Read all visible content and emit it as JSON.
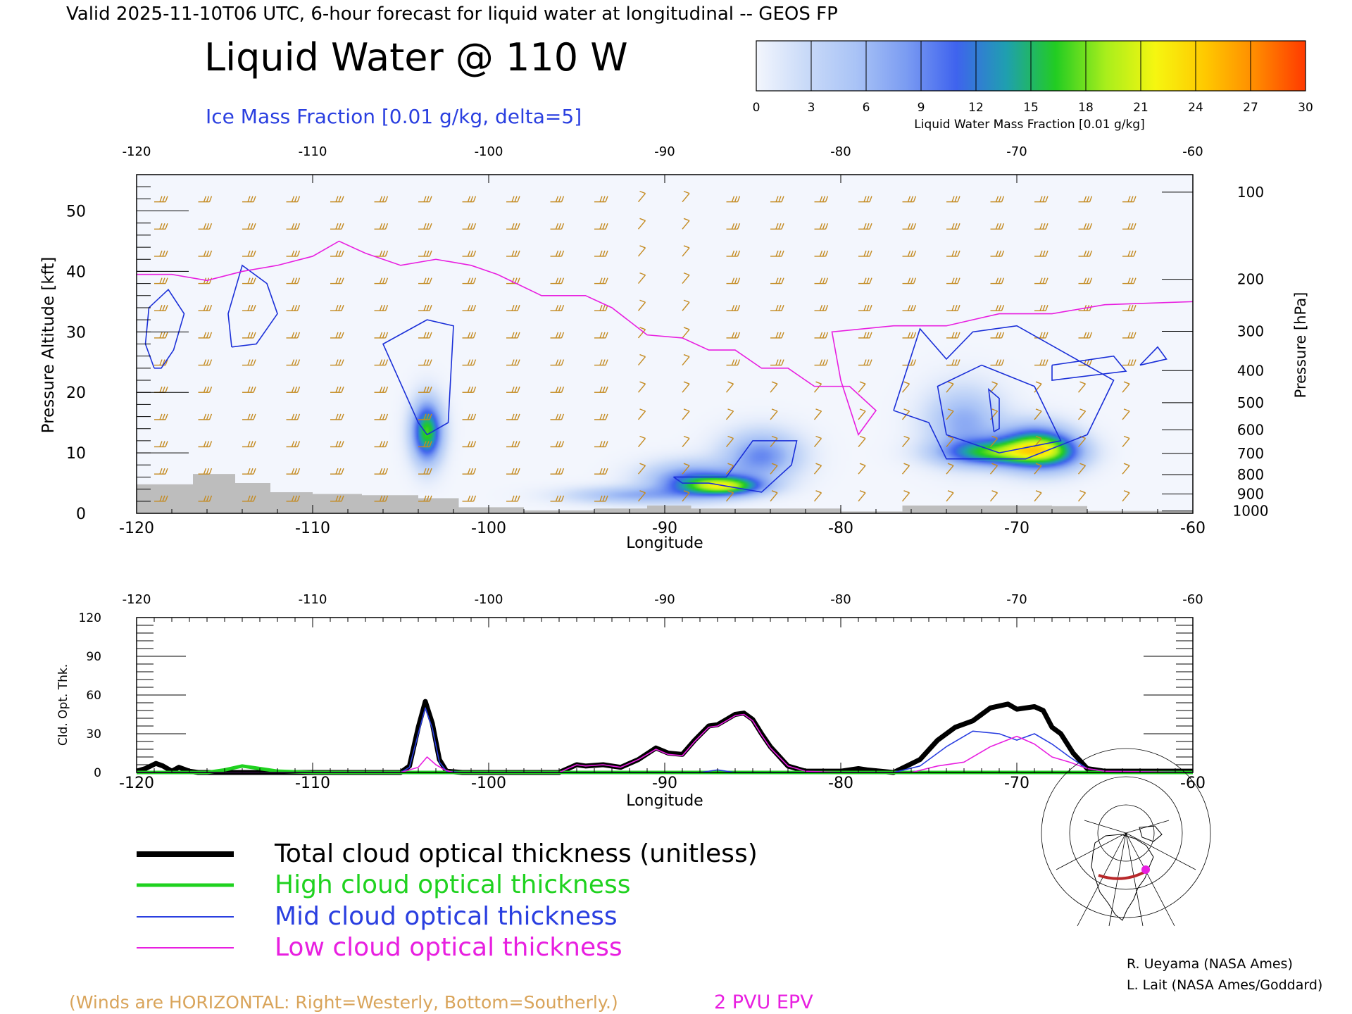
{
  "header": {
    "valid_line": "Valid 2025-11-10T06 UTC, 6-hour forecast for liquid water at longitudinal -- GEOS FP",
    "main_title": "Liquid Water @ 110 W",
    "subtitle": "Ice Mass Fraction [0.01 g/kg, delta=5]"
  },
  "colorbar": {
    "ticks": [
      "0",
      "3",
      "6",
      "9",
      "12",
      "15",
      "18",
      "21",
      "24",
      "27",
      "30"
    ],
    "colors": [
      "#f3f6fd",
      "#c9daf8",
      "#a9c3f6",
      "#7b9cf2",
      "#3f63ee",
      "#1f9fb0",
      "#22cc22",
      "#a8ee1c",
      "#f6f610",
      "#ffc800",
      "#ff8a00",
      "#ff3a00"
    ],
    "label": "Liquid Water Mass Fraction [0.01 g/kg]"
  },
  "colors": {
    "axis": "#000000",
    "contour": "#1a2fd8",
    "epv": "#e81fe0",
    "wind": "#c48b22",
    "terrain": "#bdbdbd",
    "total": "#000000",
    "high": "#1fd21f",
    "mid": "#2a3fe0",
    "low": "#e81fe0"
  },
  "chart_data": [
    {
      "type": "heatmap",
      "title": "Liquid Water @ 110 W",
      "xlabel": "Longitude",
      "ylabel": "Pressure Altitude [kft]",
      "y2label": "Pressure [hPa]",
      "xlim": [
        -120,
        -60
      ],
      "ylim": [
        0,
        56
      ],
      "x_ticks": [
        "-120",
        "-110",
        "-100",
        "-90",
        "-80",
        "-70",
        "-60"
      ],
      "x_tick_values": [
        -120,
        -110,
        -100,
        -90,
        -80,
        -70,
        -60
      ],
      "y_ticks": [
        "0",
        "10",
        "20",
        "30",
        "40",
        "50"
      ],
      "y_tick_values": [
        0,
        10,
        20,
        30,
        40,
        50
      ],
      "pressure_ticks": [
        "100",
        "200",
        "300",
        "400",
        "500",
        "600",
        "700",
        "800",
        "900",
        "1000"
      ],
      "pressure_tick_kft": [
        53.1,
        38.7,
        30.1,
        23.6,
        18.3,
        13.8,
        9.9,
        6.4,
        3.2,
        0.4
      ],
      "liquid_water_blobs": [
        {
          "lon": -103.5,
          "kft": 13.5,
          "peak": 17,
          "sx": 0.6,
          "sy": 3.5
        },
        {
          "lon": -86.5,
          "kft": 4.5,
          "peak": 16,
          "sx": 1.5,
          "sy": 1.1
        },
        {
          "lon": -88.5,
          "kft": 5.5,
          "peak": 10,
          "sx": 1.8,
          "sy": 2.0
        },
        {
          "lon": -84.5,
          "kft": 9.5,
          "peak": 9,
          "sx": 1.5,
          "sy": 2.8
        },
        {
          "lon": -92.0,
          "kft": 3.0,
          "peak": 6,
          "sx": 2.5,
          "sy": 1.0
        },
        {
          "lon": -69.0,
          "kft": 11.0,
          "peak": 16,
          "sx": 1.4,
          "sy": 2.5
        },
        {
          "lon": -71.5,
          "kft": 10.0,
          "peak": 13,
          "sx": 2.0,
          "sy": 1.5
        },
        {
          "lon": -73.0,
          "kft": 15.0,
          "peak": 7,
          "sx": 1.5,
          "sy": 4.0
        },
        {
          "lon": -67.5,
          "kft": 10.0,
          "peak": 7,
          "sx": 1.2,
          "sy": 2.0
        }
      ],
      "ice_contours": [
        [
          [
            -119.0,
            24
          ],
          [
            -119.5,
            28
          ],
          [
            -119.3,
            34
          ],
          [
            -118.2,
            37
          ],
          [
            -117.3,
            33
          ],
          [
            -117.9,
            27
          ],
          [
            -118.6,
            24
          ],
          [
            -119.0,
            24
          ]
        ],
        [
          [
            -114.6,
            27.5
          ],
          [
            -114.8,
            33
          ],
          [
            -114.0,
            41
          ],
          [
            -112.6,
            38
          ],
          [
            -112.0,
            33
          ],
          [
            -113.2,
            28
          ],
          [
            -114.6,
            27.5
          ]
        ],
        [
          [
            -104.0,
            15
          ],
          [
            -106.0,
            28
          ],
          [
            -103.5,
            32
          ],
          [
            -102.0,
            31
          ],
          [
            -102.3,
            15
          ],
          [
            -103.5,
            13
          ],
          [
            -104.0,
            15
          ]
        ],
        [
          [
            -89.5,
            6
          ],
          [
            -86.5,
            6
          ],
          [
            -85.0,
            12
          ],
          [
            -82.5,
            12
          ],
          [
            -82.8,
            8
          ],
          [
            -84.5,
            3.5
          ],
          [
            -87.5,
            5
          ],
          [
            -89.0,
            5
          ],
          [
            -89.5,
            6
          ]
        ],
        [
          [
            -77.0,
            17
          ],
          [
            -75.5,
            30.5
          ],
          [
            -74.0,
            25.5
          ],
          [
            -72.5,
            30
          ],
          [
            -70.0,
            31
          ],
          [
            -64.5,
            22
          ],
          [
            -66.0,
            13
          ],
          [
            -69.5,
            9
          ],
          [
            -74.0,
            9
          ],
          [
            -75.0,
            15
          ],
          [
            -77.0,
            17
          ]
        ],
        [
          [
            -74.0,
            13
          ],
          [
            -74.5,
            21
          ],
          [
            -72.0,
            24.5
          ],
          [
            -69.0,
            21
          ],
          [
            -67.5,
            12
          ],
          [
            -71.0,
            10
          ],
          [
            -74.0,
            13
          ]
        ],
        [
          [
            -71.3,
            13.5
          ],
          [
            -71.6,
            20.5
          ],
          [
            -71.0,
            19
          ],
          [
            -71.0,
            14
          ],
          [
            -71.3,
            13.5
          ]
        ],
        [
          [
            -68.0,
            24.5
          ],
          [
            -64.5,
            26
          ],
          [
            -63.8,
            23.5
          ],
          [
            -68.0,
            22
          ],
          [
            -68.0,
            24.5
          ]
        ],
        [
          [
            -63.0,
            24.5
          ],
          [
            -62.0,
            27.5
          ],
          [
            -61.5,
            25.5
          ],
          [
            -63.0,
            24.5
          ]
        ]
      ],
      "epv_2pvu": [
        [
          -120,
          39.5
        ],
        [
          -118,
          39.5
        ],
        [
          -116,
          38.5
        ],
        [
          -114,
          40
        ],
        [
          -112,
          41
        ],
        [
          -110,
          42.5
        ],
        [
          -108.5,
          45
        ],
        [
          -107,
          43
        ],
        [
          -105,
          41
        ],
        [
          -103,
          42
        ],
        [
          -101,
          41
        ],
        [
          -99.5,
          39.5
        ],
        [
          -97,
          36
        ],
        [
          -94.5,
          36
        ],
        [
          -93,
          34
        ],
        [
          -91,
          29.5
        ],
        [
          -89,
          29
        ],
        [
          -87.5,
          27
        ],
        [
          -86,
          27
        ],
        [
          -84.5,
          24
        ],
        [
          -83,
          24
        ],
        [
          -81.5,
          21
        ],
        [
          -79.5,
          21
        ],
        [
          -78,
          17
        ],
        [
          -79,
          13
        ],
        [
          -80,
          22
        ],
        [
          -80.5,
          30
        ],
        [
          -77,
          31
        ],
        [
          -74,
          31
        ],
        [
          -71,
          33
        ],
        [
          -68,
          33
        ],
        [
          -65,
          34.5
        ],
        [
          -60,
          35
        ]
      ],
      "terrain": [
        [
          -120,
          4.8
        ],
        [
          -116.8,
          6.5
        ],
        [
          -114.4,
          5.0
        ],
        [
          -112.4,
          3.5
        ],
        [
          -110,
          3.2
        ],
        [
          -107.2,
          3.0
        ],
        [
          -104,
          2.5
        ],
        [
          -101.7,
          1.0
        ],
        [
          -98,
          0.5
        ],
        [
          -94,
          0.8
        ],
        [
          -91,
          1.3
        ],
        [
          -88.5,
          0.8
        ],
        [
          -80,
          0.3
        ],
        [
          -76.5,
          1.3
        ],
        [
          -68,
          1.2
        ],
        [
          -66,
          0.4
        ],
        [
          -60,
          0.2
        ]
      ]
    },
    {
      "type": "line",
      "xlabel": "Longitude",
      "ylabel": "Cld. Opt. Thk.",
      "xlim": [
        -120,
        -60
      ],
      "ylim": [
        0,
        120
      ],
      "x_ticks": [
        "-120",
        "-110",
        "-100",
        "-90",
        "-80",
        "-70",
        "-60"
      ],
      "x_tick_values": [
        -120,
        -110,
        -100,
        -90,
        -80,
        -70,
        -60
      ],
      "y_ticks": [
        "0",
        "30",
        "60",
        "90",
        "120"
      ],
      "y_tick_values": [
        0,
        30,
        60,
        90,
        120
      ],
      "series": [
        {
          "name": "Total cloud optical thickness (unitless)",
          "x": [
            -120,
            -119.5,
            -118.9,
            -118.5,
            -118.0,
            -117.6,
            -117.0,
            -116.5,
            -110,
            -105,
            -104.5,
            -104.0,
            -103.6,
            -103.2,
            -102.8,
            -102.4,
            -101.5,
            -100,
            -96,
            -95.0,
            -94.5,
            -93.5,
            -92.5,
            -91.5,
            -90.5,
            -89.8,
            -89.0,
            -88.3,
            -87.5,
            -87.0,
            -86.5,
            -86.0,
            -85.5,
            -85.0,
            -84.5,
            -84.0,
            -83.0,
            -82.0,
            -80.0,
            -79.0,
            -78.5,
            -77.0,
            -75.5,
            -74.5,
            -73.5,
            -72.5,
            -72.0,
            -71.5,
            -70.5,
            -70.0,
            -69.0,
            -68.5,
            -68.0,
            -67.5,
            -66.8,
            -66.0,
            -65.0,
            -60
          ],
          "y": [
            1,
            3,
            7,
            5,
            1,
            4,
            1,
            0,
            0,
            0,
            5,
            35,
            55,
            38,
            10,
            1,
            0,
            0,
            0,
            6,
            5,
            6,
            4,
            10,
            19,
            15,
            14,
            25,
            36,
            37,
            41,
            45,
            46,
            41,
            30,
            20,
            5,
            1,
            1,
            3,
            2,
            0,
            10,
            25,
            35,
            40,
            45,
            50,
            53,
            49,
            51,
            48,
            35,
            30,
            15,
            3,
            1,
            1
          ]
        },
        {
          "name": "High cloud optical thickness",
          "x": [
            -120,
            -116,
            -115,
            -114,
            -113,
            -112,
            -110,
            -60
          ],
          "y": [
            0,
            0,
            2,
            5,
            3,
            1,
            0,
            0
          ]
        },
        {
          "name": "Mid cloud optical thickness",
          "x": [
            -120,
            -105,
            -104.5,
            -104.0,
            -103.6,
            -103.2,
            -102.8,
            -102.4,
            -101.5,
            -100,
            -88,
            -87,
            -86,
            -80,
            -77,
            -75.5,
            -74,
            -72.5,
            -71.0,
            -70.0,
            -69.0,
            -68.0,
            -67.0,
            -66.0,
            -65.0,
            -60
          ],
          "y": [
            0,
            0,
            4,
            30,
            50,
            34,
            8,
            1,
            0,
            0,
            0,
            2,
            0,
            0,
            0,
            5,
            20,
            32,
            30,
            25,
            30,
            22,
            12,
            3,
            1,
            0
          ]
        },
        {
          "name": "Low cloud optical thickness",
          "x": [
            -120,
            -105,
            -104.0,
            -103.5,
            -103.0,
            -102.5,
            -102.0,
            -100,
            -96,
            -95.0,
            -94.5,
            -93.5,
            -92.5,
            -91.5,
            -90.5,
            -89.8,
            -89.0,
            -88.3,
            -87.5,
            -87.0,
            -86.5,
            -86.0,
            -85.5,
            -85.0,
            -84.5,
            -84.0,
            -83.0,
            -82.0,
            -80.0,
            -76,
            -74.5,
            -73.0,
            -71.5,
            -70.0,
            -69.0,
            -68.0,
            -67.0,
            -66.0,
            -65.0,
            -60
          ],
          "y": [
            0,
            0,
            4,
            12,
            6,
            2,
            0,
            0,
            0,
            6,
            5,
            6,
            4,
            10,
            18,
            14,
            13,
            24,
            35,
            36,
            40,
            44,
            45,
            40,
            29,
            19,
            5,
            1,
            0,
            0,
            5,
            8,
            20,
            28,
            22,
            12,
            8,
            3,
            1,
            0
          ]
        }
      ]
    }
  ],
  "legend": {
    "total": "Total cloud optical thickness (unitless)",
    "high": "High cloud optical thickness",
    "mid": "Mid cloud optical thickness",
    "low": "Low cloud optical thickness"
  },
  "footer": {
    "winds_note": "(Winds are HORIZONTAL: Right=Westerly, Bottom=Southerly.)",
    "epv_label": "2 PVU EPV",
    "credit1": "R. Ueyama (NASA Ames)",
    "credit2": "L. Lait (NASA Ames/Goddard)"
  }
}
